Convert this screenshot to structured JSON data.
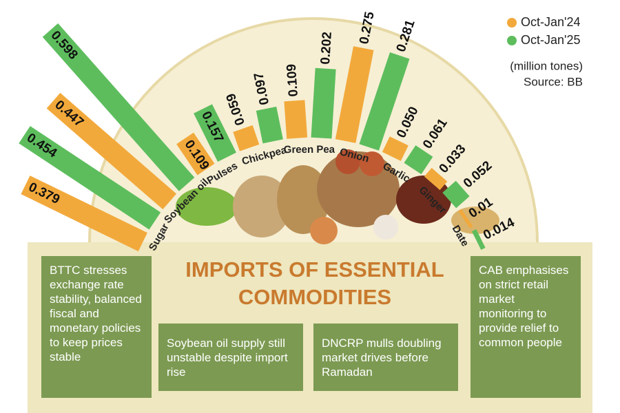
{
  "chart_data": {
    "type": "radial-bar",
    "title": "IMPORTS OF ESSENTIAL COMMODITIES",
    "unit_label": "(million tones)",
    "source": "Source: BB",
    "categories": [
      "Sugar",
      "Soybean oil",
      "Pulses",
      "Chickpea",
      "Green Pea",
      "Onion",
      "Garlic",
      "Ginger",
      "Date"
    ],
    "series": [
      {
        "name": "Oct-Jan'24",
        "color": "#f2a93b",
        "values": [
          0.379,
          0.447,
          0.109,
          0.059,
          0.109,
          0.275,
          0.05,
          0.033,
          0.01
        ],
        "value_labels": [
          "0.379",
          "0.447",
          "0.109",
          "0.059",
          "0.109",
          "0.275",
          "0.050",
          "0.033",
          "0.01"
        ]
      },
      {
        "name": "Oct-Jan'25",
        "color": "#5dbd5d",
        "values": [
          0.454,
          0.598,
          0.157,
          0.097,
          0.202,
          0.281,
          0.061,
          0.052,
          0.014
        ],
        "value_labels": [
          "0.454",
          "0.598",
          "0.157",
          "0.097",
          "0.202",
          "0.281",
          "0.061",
          "0.052",
          "0.014"
        ]
      }
    ],
    "legend": "top-right"
  },
  "notes": [
    "BTTC stresses exchange rate stability, balanced fiscal and monetary policies to keep prices stable",
    "Soybean oil supply still unstable despite import rise",
    "DNCRP mulls doubling market drives before Ramadan",
    "CAB  emphasises on strict retail market monitoring to provide relief to common people"
  ]
}
